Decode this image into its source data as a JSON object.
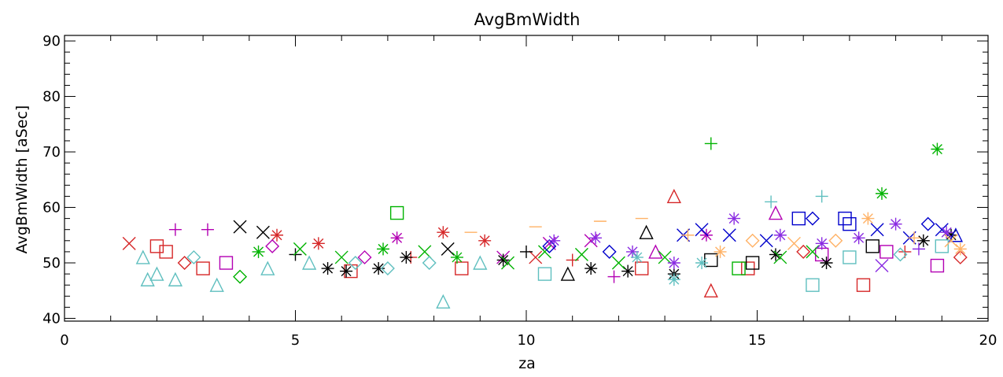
{
  "chart_data": {
    "type": "scatter",
    "title": "AvgBmWidth",
    "xlabel": "za",
    "ylabel": "AvgBmWidth [aSec]",
    "xlim": [
      0,
      20
    ],
    "ylim": [
      39.5,
      91
    ],
    "x_ticks": [
      0,
      5,
      10,
      15,
      20
    ],
    "x_tick_labels": [
      "0",
      "5",
      "10",
      "15",
      "20"
    ],
    "y_ticks": [
      40,
      50,
      60,
      70,
      80,
      90
    ],
    "y_tick_labels": [
      "40",
      "50",
      "60",
      "70",
      "80",
      "90"
    ],
    "grid": false,
    "legend": "none",
    "colors": [
      "#d62728",
      "#b300b3",
      "#000000",
      "#00b300",
      "#0000cc",
      "#8a2be2",
      "#5fbfbf",
      "#ffb266"
    ],
    "markers": [
      "plus",
      "asterisk",
      "diamond",
      "triangle",
      "square",
      "x",
      "dash"
    ],
    "series": [
      {
        "color": "#d62728",
        "points": [
          [
            1.4,
            53.5,
            "x"
          ],
          [
            2.0,
            53.0,
            "square"
          ],
          [
            2.2,
            52.0,
            "square"
          ],
          [
            2.6,
            50.0,
            "diamond"
          ],
          [
            3.0,
            49.0,
            "square"
          ],
          [
            4.6,
            55.0,
            "asterisk"
          ],
          [
            5.5,
            53.5,
            "asterisk"
          ],
          [
            6.2,
            48.5,
            "square"
          ],
          [
            7.5,
            51.0,
            "plus"
          ],
          [
            8.2,
            55.5,
            "asterisk"
          ],
          [
            8.6,
            49.0,
            "square"
          ],
          [
            9.1,
            54.0,
            "asterisk"
          ],
          [
            10.2,
            51.0,
            "x"
          ],
          [
            11.0,
            50.5,
            "plus"
          ],
          [
            12.5,
            49.0,
            "square"
          ],
          [
            13.2,
            62.0,
            "triangle"
          ],
          [
            14.0,
            45.0,
            "triangle"
          ],
          [
            14.8,
            49.0,
            "square"
          ],
          [
            16.0,
            52.0,
            "diamond"
          ],
          [
            17.3,
            46.0,
            "square"
          ],
          [
            18.2,
            52.0,
            "plus"
          ],
          [
            19.4,
            51.0,
            "diamond"
          ]
        ]
      },
      {
        "color": "#b300b3",
        "points": [
          [
            2.4,
            56.0,
            "plus"
          ],
          [
            3.1,
            56.0,
            "plus"
          ],
          [
            3.5,
            50.0,
            "square"
          ],
          [
            4.5,
            53.0,
            "diamond"
          ],
          [
            6.5,
            51.0,
            "diamond"
          ],
          [
            7.2,
            54.5,
            "asterisk"
          ],
          [
            9.5,
            51.0,
            "x"
          ],
          [
            10.5,
            53.5,
            "x"
          ],
          [
            11.4,
            54.0,
            "x"
          ],
          [
            11.9,
            47.5,
            "plus"
          ],
          [
            12.8,
            52.0,
            "triangle"
          ],
          [
            13.9,
            55.0,
            "asterisk"
          ],
          [
            15.4,
            59.0,
            "triangle"
          ],
          [
            16.4,
            51.5,
            "square"
          ],
          [
            17.8,
            52.0,
            "square"
          ],
          [
            18.9,
            49.5,
            "square"
          ]
        ]
      },
      {
        "color": "#000000",
        "points": [
          [
            3.8,
            56.5,
            "x"
          ],
          [
            4.3,
            55.5,
            "x"
          ],
          [
            5.0,
            51.5,
            "plus"
          ],
          [
            5.7,
            49.0,
            "asterisk"
          ],
          [
            6.1,
            48.5,
            "asterisk"
          ],
          [
            6.8,
            49.0,
            "asterisk"
          ],
          [
            7.4,
            51.0,
            "asterisk"
          ],
          [
            8.3,
            52.5,
            "x"
          ],
          [
            9.5,
            50.5,
            "asterisk"
          ],
          [
            10.0,
            52.0,
            "plus"
          ],
          [
            10.9,
            48.0,
            "triangle"
          ],
          [
            11.4,
            49.0,
            "asterisk"
          ],
          [
            12.2,
            48.5,
            "asterisk"
          ],
          [
            12.6,
            55.5,
            "triangle"
          ],
          [
            13.2,
            48.0,
            "asterisk"
          ],
          [
            14.0,
            50.5,
            "square"
          ],
          [
            14.9,
            50.0,
            "square"
          ],
          [
            15.4,
            51.5,
            "asterisk"
          ],
          [
            16.5,
            50.0,
            "asterisk"
          ],
          [
            17.5,
            53.0,
            "square"
          ],
          [
            18.6,
            54.0,
            "asterisk"
          ],
          [
            19.2,
            55.0,
            "asterisk"
          ]
        ]
      },
      {
        "color": "#00b300",
        "points": [
          [
            3.8,
            47.5,
            "diamond"
          ],
          [
            4.2,
            52.0,
            "asterisk"
          ],
          [
            5.1,
            52.5,
            "x"
          ],
          [
            6.0,
            51.0,
            "x"
          ],
          [
            6.9,
            52.5,
            "asterisk"
          ],
          [
            7.2,
            59.0,
            "square"
          ],
          [
            7.8,
            52.0,
            "x"
          ],
          [
            8.5,
            51.0,
            "asterisk"
          ],
          [
            9.6,
            50.0,
            "x"
          ],
          [
            10.4,
            52.0,
            "x"
          ],
          [
            11.2,
            51.5,
            "x"
          ],
          [
            12.0,
            50.0,
            "x"
          ],
          [
            13.0,
            51.0,
            "x"
          ],
          [
            14.0,
            71.5,
            "plus"
          ],
          [
            14.6,
            49.0,
            "square"
          ],
          [
            15.5,
            51.0,
            "x"
          ],
          [
            16.2,
            52.0,
            "x"
          ],
          [
            17.7,
            62.5,
            "asterisk"
          ],
          [
            18.9,
            70.5,
            "asterisk"
          ]
        ]
      },
      {
        "color": "#0000cc",
        "points": [
          [
            10.5,
            53.0,
            "diamond"
          ],
          [
            11.8,
            52.0,
            "diamond"
          ],
          [
            13.4,
            55.0,
            "x"
          ],
          [
            13.8,
            56.0,
            "x"
          ],
          [
            14.4,
            55.0,
            "x"
          ],
          [
            15.2,
            54.0,
            "x"
          ],
          [
            15.9,
            58.0,
            "square"
          ],
          [
            16.2,
            58.0,
            "diamond"
          ],
          [
            16.9,
            58.0,
            "square"
          ],
          [
            17.0,
            57.0,
            "square"
          ],
          [
            17.6,
            56.0,
            "x"
          ],
          [
            18.3,
            54.5,
            "x"
          ],
          [
            18.7,
            57.0,
            "diamond"
          ],
          [
            19.0,
            56.0,
            "x"
          ],
          [
            19.3,
            55.0,
            "triangle"
          ]
        ]
      },
      {
        "color": "#8a2be2",
        "points": [
          [
            10.6,
            54.0,
            "asterisk"
          ],
          [
            11.5,
            54.5,
            "asterisk"
          ],
          [
            12.3,
            52.0,
            "asterisk"
          ],
          [
            13.2,
            50.0,
            "asterisk"
          ],
          [
            14.5,
            58.0,
            "asterisk"
          ],
          [
            15.5,
            55.0,
            "asterisk"
          ],
          [
            16.4,
            53.5,
            "asterisk"
          ],
          [
            17.2,
            54.5,
            "asterisk"
          ],
          [
            17.7,
            49.5,
            "x"
          ],
          [
            18.0,
            57.0,
            "asterisk"
          ],
          [
            18.5,
            52.5,
            "plus"
          ],
          [
            19.1,
            55.5,
            "asterisk"
          ]
        ]
      },
      {
        "color": "#5fbfbf",
        "points": [
          [
            1.7,
            51.0,
            "triangle"
          ],
          [
            1.8,
            47.0,
            "triangle"
          ],
          [
            2.0,
            48.0,
            "triangle"
          ],
          [
            2.4,
            47.0,
            "triangle"
          ],
          [
            2.8,
            51.0,
            "diamond"
          ],
          [
            3.3,
            46.0,
            "triangle"
          ],
          [
            4.4,
            49.0,
            "triangle"
          ],
          [
            5.3,
            50.0,
            "triangle"
          ],
          [
            6.3,
            50.0,
            "diamond"
          ],
          [
            7.0,
            49.0,
            "diamond"
          ],
          [
            7.9,
            50.0,
            "diamond"
          ],
          [
            8.2,
            43.0,
            "triangle"
          ],
          [
            9.0,
            50.0,
            "triangle"
          ],
          [
            10.4,
            48.0,
            "square"
          ],
          [
            12.4,
            51.0,
            "asterisk"
          ],
          [
            13.2,
            47.0,
            "asterisk"
          ],
          [
            13.8,
            50.0,
            "asterisk"
          ],
          [
            15.3,
            61.0,
            "plus"
          ],
          [
            16.2,
            46.0,
            "square"
          ],
          [
            16.4,
            62.0,
            "plus"
          ],
          [
            17.0,
            51.0,
            "square"
          ],
          [
            18.1,
            51.5,
            "diamond"
          ],
          [
            19.0,
            53.0,
            "square"
          ]
        ]
      },
      {
        "color": "#ffb266",
        "points": [
          [
            8.8,
            55.5,
            "dash"
          ],
          [
            10.2,
            56.5,
            "dash"
          ],
          [
            11.6,
            57.5,
            "dash"
          ],
          [
            12.5,
            58.0,
            "dash"
          ],
          [
            13.5,
            55.0,
            "plus"
          ],
          [
            14.2,
            52.0,
            "asterisk"
          ],
          [
            14.9,
            54.0,
            "diamond"
          ],
          [
            15.8,
            53.5,
            "x"
          ],
          [
            16.7,
            54.0,
            "diamond"
          ],
          [
            17.4,
            58.0,
            "asterisk"
          ],
          [
            18.4,
            54.5,
            "plus"
          ],
          [
            19.2,
            54.0,
            "x"
          ],
          [
            19.4,
            52.5,
            "asterisk"
          ]
        ]
      }
    ]
  }
}
